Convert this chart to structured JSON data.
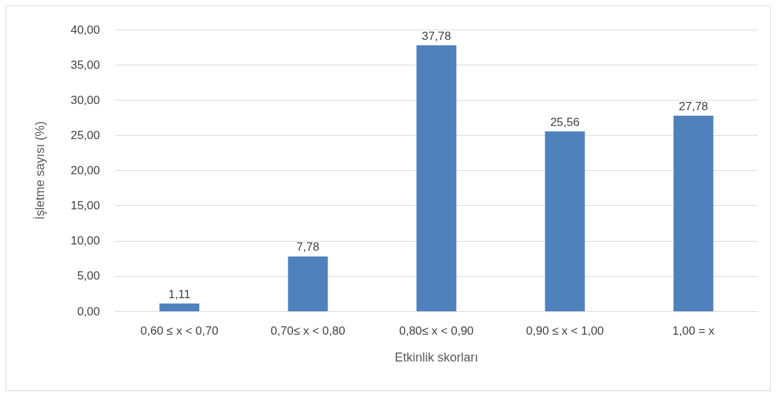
{
  "chart_data": {
    "type": "bar",
    "xlabel": "Etkinlik skorları",
    "ylabel": "İşletme sayısı (%)",
    "categories": [
      "0,60 ≤ x < 0,70",
      "0,70≤ x < 0,80",
      "0,80≤ x < 0,90",
      "0,90 ≤ x < 1,00",
      "1,00 = x"
    ],
    "values": [
      1.11,
      7.78,
      37.78,
      25.56,
      27.78
    ],
    "value_labels": [
      "1,11",
      "7,78",
      "37,78",
      "25,56",
      "27,78"
    ],
    "color": "#4f81bd",
    "ylim": [
      0,
      40
    ],
    "yticks": [
      {
        "value": 0,
        "label": "0,00"
      },
      {
        "value": 5,
        "label": "5,00"
      },
      {
        "value": 10,
        "label": "10,00"
      },
      {
        "value": 15,
        "label": "15,00"
      },
      {
        "value": 20,
        "label": "20,00"
      },
      {
        "value": 25,
        "label": "25,00"
      },
      {
        "value": 30,
        "label": "30,00"
      },
      {
        "value": 35,
        "label": "35,00"
      },
      {
        "value": 40,
        "label": "40,00"
      }
    ],
    "grid": "y"
  }
}
